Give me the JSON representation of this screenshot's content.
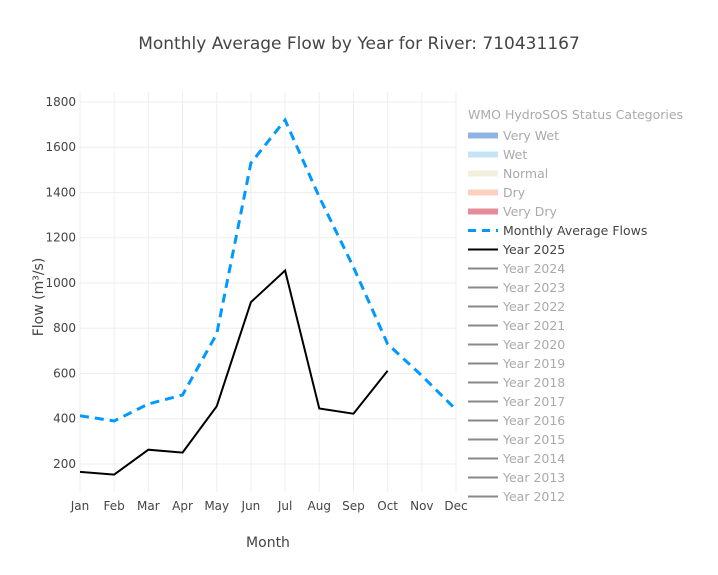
{
  "title": "Monthly Average Flow by Year for River: 710431167",
  "legend": {
    "title": "WMO HydroSOS Status Categories",
    "items": [
      {
        "label": "Very Wet",
        "type": "band",
        "color": "#8fb4e3",
        "active": false
      },
      {
        "label": "Wet",
        "type": "band",
        "color": "#c6e4f5",
        "active": false
      },
      {
        "label": "Normal",
        "type": "band",
        "color": "#f3efdd",
        "active": false
      },
      {
        "label": "Dry",
        "type": "band",
        "color": "#fcd0bf",
        "active": false
      },
      {
        "label": "Very Dry",
        "type": "band",
        "color": "#e48c98",
        "active": false
      },
      {
        "label": "Monthly Average Flows",
        "type": "dash",
        "color": "#0099ff",
        "active": true
      },
      {
        "label": "Year 2025",
        "type": "line",
        "color": "#000000",
        "active": true
      },
      {
        "label": "Year 2024",
        "type": "line",
        "color": "#888888",
        "active": false
      },
      {
        "label": "Year 2023",
        "type": "line",
        "color": "#888888",
        "active": false
      },
      {
        "label": "Year 2022",
        "type": "line",
        "color": "#888888",
        "active": false
      },
      {
        "label": "Year 2021",
        "type": "line",
        "color": "#888888",
        "active": false
      },
      {
        "label": "Year 2020",
        "type": "line",
        "color": "#888888",
        "active": false
      },
      {
        "label": "Year 2019",
        "type": "line",
        "color": "#888888",
        "active": false
      },
      {
        "label": "Year 2018",
        "type": "line",
        "color": "#888888",
        "active": false
      },
      {
        "label": "Year 2017",
        "type": "line",
        "color": "#888888",
        "active": false
      },
      {
        "label": "Year 2016",
        "type": "line",
        "color": "#888888",
        "active": false
      },
      {
        "label": "Year 2015",
        "type": "line",
        "color": "#888888",
        "active": false
      },
      {
        "label": "Year 2014",
        "type": "line",
        "color": "#888888",
        "active": false
      },
      {
        "label": "Year 2013",
        "type": "line",
        "color": "#888888",
        "active": false
      },
      {
        "label": "Year 2012",
        "type": "line",
        "color": "#888888",
        "active": false
      }
    ]
  },
  "chart_data": {
    "type": "line",
    "title": "Monthly Average Flow by Year for River: 710431167",
    "xlabel": "Month",
    "ylabel": "Flow (m³/s)",
    "categories": [
      "Jan",
      "Feb",
      "Mar",
      "Apr",
      "May",
      "Jun",
      "Jul",
      "Aug",
      "Sep",
      "Oct",
      "Nov",
      "Dec"
    ],
    "yticks": [
      200,
      400,
      600,
      800,
      1000,
      1200,
      1400,
      1600,
      1800
    ],
    "ylim": [
      76,
      1844
    ],
    "grid": true,
    "legend_position": "right",
    "series": [
      {
        "name": "Monthly Average Flows",
        "color": "#0099ff",
        "dash": true,
        "values": [
          413,
          390,
          465,
          505,
          775,
          1530,
          1720,
          1380,
          1070,
          730,
          590,
          440
        ]
      },
      {
        "name": "Year 2025",
        "color": "#000000",
        "dash": false,
        "values": [
          165,
          153,
          263,
          250,
          455,
          915,
          1055,
          445,
          422,
          612,
          null,
          null
        ]
      }
    ]
  }
}
